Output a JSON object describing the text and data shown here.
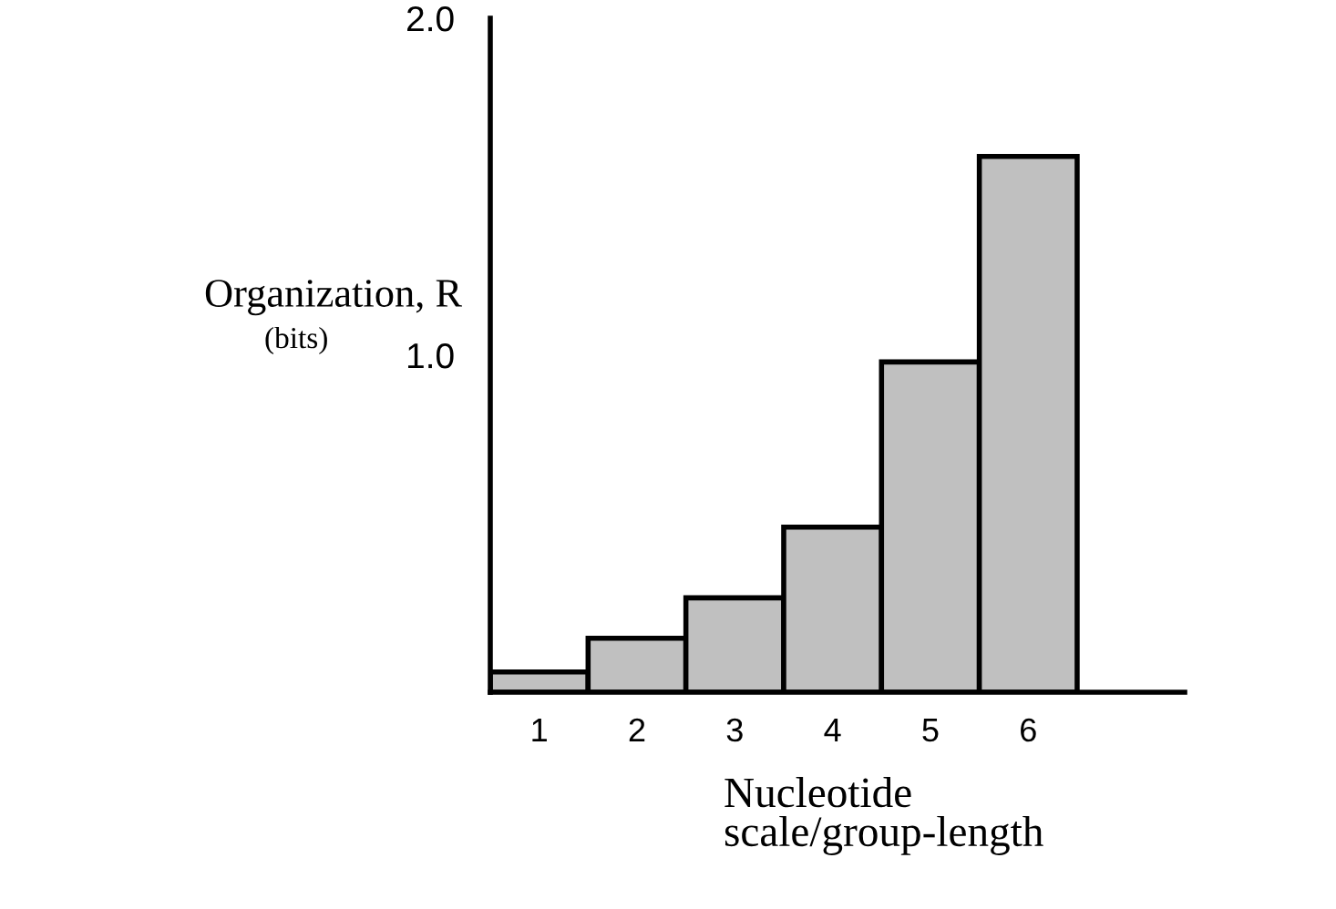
{
  "chart_data": {
    "type": "bar",
    "xlabel": "Nucleotide\nscale/group-length",
    "ylabel": "Organization, R\n(bits)",
    "categories": [
      "1",
      "2",
      "3",
      "4",
      "5",
      "6"
    ],
    "values": [
      0.06,
      0.16,
      0.28,
      0.49,
      0.98,
      1.59
    ],
    "color": "#c0c0c0",
    "ylim": [
      0,
      2.0
    ],
    "yticks": [
      {
        "value": 1.0,
        "label": "1.0"
      },
      {
        "value": 2.0,
        "label": "2.0"
      }
    ],
    "grid": false,
    "legend": false
  }
}
